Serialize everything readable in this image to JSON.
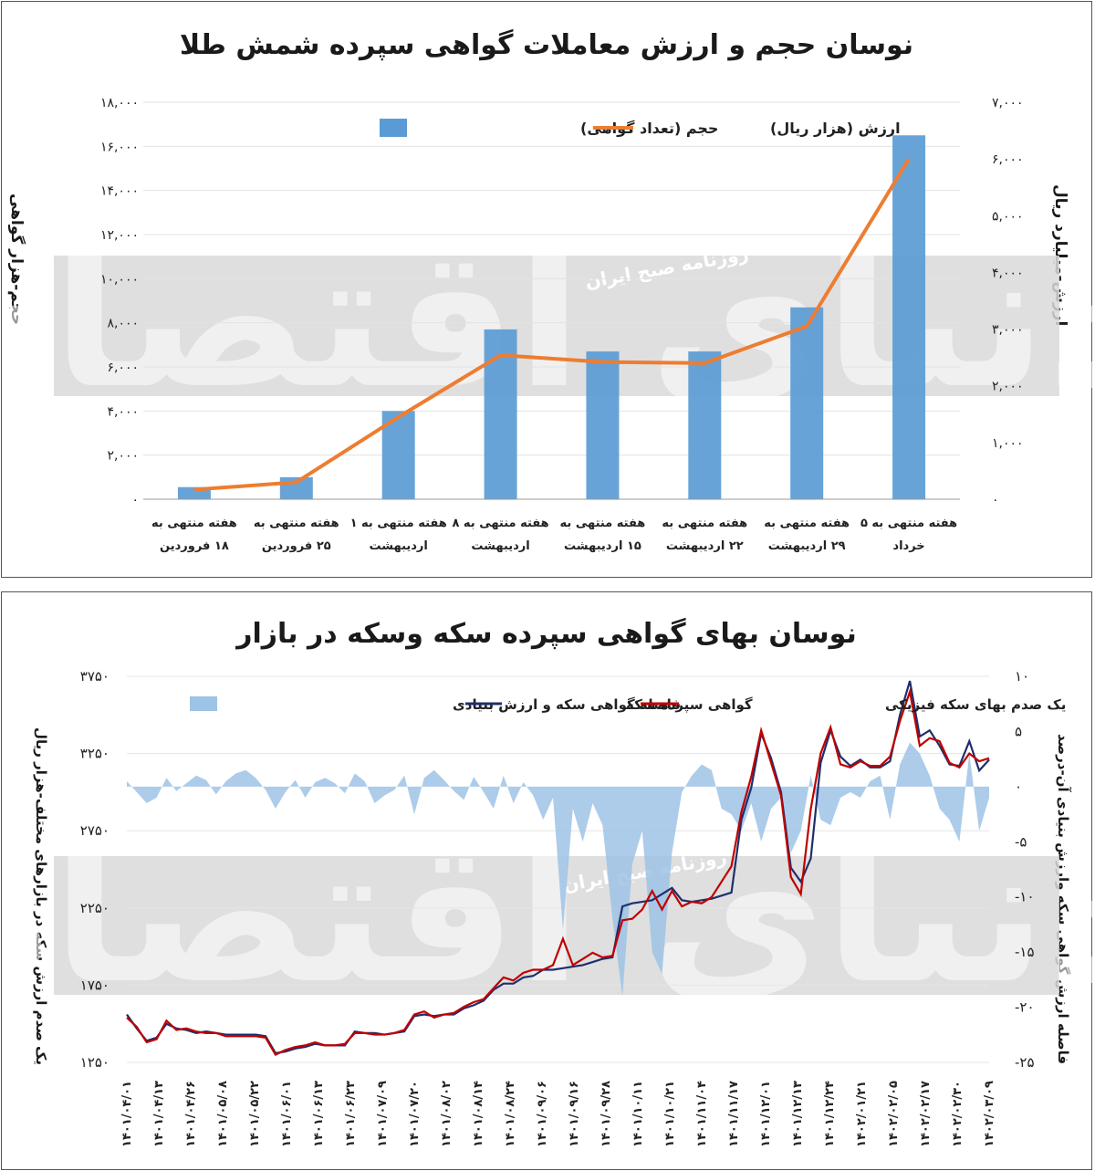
{
  "watermark": {
    "big": "دنیای اقتصاد",
    "small": "روزنامه صبح ایران"
  },
  "colors": {
    "bar": "#5b9bd5",
    "value_line": "#ed7d31",
    "area": "#9dc3e6",
    "cert_line": "#1f2f6b",
    "coin_line": "#c00000"
  },
  "chart_data": [
    {
      "type": "bar",
      "title": "نوسان حجم و ارزش معاملات گواهی سپرده شمش طلا",
      "ylabel": "حجم-هزار گواهی",
      "y2label": "ارزش-میلیارد ریال",
      "ylim": [
        0,
        18000
      ],
      "y2lim": [
        0,
        7000
      ],
      "yticks": [
        "۱۸,۰۰۰",
        "۱۶,۰۰۰",
        "۱۴,۰۰۰",
        "۱۲,۰۰۰",
        "۱۰,۰۰۰",
        "۸,۰۰۰",
        "۶,۰۰۰",
        "۴,۰۰۰",
        "۲,۰۰۰",
        "۰"
      ],
      "y2ticks": [
        "۷,۰۰۰",
        "۶,۰۰۰",
        "۵,۰۰۰",
        "۴,۰۰۰",
        "۳,۰۰۰",
        "۲,۰۰۰",
        "۱,۰۰۰",
        "۰"
      ],
      "categories": [
        [
          "هفته منتهی به",
          "۱۸ فروردین"
        ],
        [
          "هفته منتهی به",
          "۲۵ فروردین"
        ],
        [
          "هفته منتهی به ۱",
          "اردیبهشت"
        ],
        [
          "هفته منتهی به ۸",
          "اردیبهشت"
        ],
        [
          "هفته منتهی به",
          "۱۵ اردیبهشت"
        ],
        [
          "هفته منتهی به",
          "۲۲ اردیبهشت"
        ],
        [
          "هفته منتهی به",
          "۲۹ اردیبهشت"
        ],
        [
          "هفته منتهی به ۵",
          "خرداد"
        ]
      ],
      "series": [
        {
          "name": "حجم (تعداد گواهی)",
          "axis": "left",
          "kind": "bar",
          "values": [
            550,
            1000,
            4000,
            7700,
            6700,
            6700,
            8700,
            16500
          ]
        },
        {
          "name": "ارزش (هزار ریال)",
          "axis": "right",
          "kind": "line",
          "values": [
            170,
            300,
            1450,
            2540,
            2420,
            2400,
            3050,
            6000
          ]
        }
      ],
      "legend": "top-center"
    },
    {
      "type": "line",
      "title": "نوسان بهای گواهی سپرده سکه وسکه در بازار",
      "ylabel": "یک صدم ارزش سکه در بازارهای مختلف-هزار ریال",
      "y2label": "فاصله ارزش گواهی سکه وارزش بنیادی آن-درصد",
      "ylim": [
        1250,
        3750
      ],
      "y2lim": [
        -25,
        10
      ],
      "yticks": [
        "۳۷۵۰",
        "۳۲۵۰",
        "۲۷۵۰",
        "۲۲۵۰",
        "۱۷۵۰",
        "۱۲۵۰"
      ],
      "y2ticks": [
        "۱۰",
        "۵",
        "۰",
        "-۵",
        "-۱۰",
        "-۱۵",
        "-۲۰",
        "-۲۵"
      ],
      "x_labels": [
        "۱۴۰۱/۰۴/۰۱",
        "۱۴۰۱/۰۴/۱۳",
        "۱۴۰۱/۰۴/۲۶",
        "۱۴۰۱/۰۵/۰۸",
        "۱۴۰۱/۰۵/۲۲",
        "۱۴۰۱/۰۶/۰۱",
        "۱۴۰۱/۰۶/۱۳",
        "۱۴۰۱/۰۶/۲۳",
        "۱۴۰۱/۰۷/۰۹",
        "۱۴۰۱/۰۷/۲۰",
        "۱۴۰۱/۰۸/۰۲",
        "۱۴۰۱/۰۸/۱۴",
        "۱۴۰۱/۰۸/۲۴",
        "۱۴۰۱/۰۹/۰۶",
        "۱۴۰۱/۰۹/۱۶",
        "۱۴۰۱/۰۹/۲۸",
        "۱۴۰۱/۱۰/۱۱",
        "۱۴۰۱/۱۰/۲۱",
        "۱۴۰۱/۱۱/۰۴",
        "۱۴۰۱/۱۱/۱۷",
        "۱۴۰۱/۱۲/۰۱",
        "۱۴۰۱/۱۲/۱۳",
        "۱۴۰۱/۱۲/۲۴",
        "۱۴۰۲/۰۱/۲۱",
        "۱۴۰۲/۰۲/۰۵",
        "۱۴۰۲/۰۲/۱۷",
        "۱۴۰۲/۰۲/۳۰",
        "۱۴۰۲/۰۳/۰۹"
      ],
      "series": [
        {
          "name": "یک صدم بهای سکه فیزیکی",
          "axis": "left",
          "kind": "line",
          "values": [
            1540,
            1480,
            1380,
            1400,
            1520,
            1460,
            1470,
            1450,
            1440,
            1440,
            1420,
            1420,
            1420,
            1420,
            1410,
            1300,
            1330,
            1350,
            1360,
            1380,
            1360,
            1360,
            1370,
            1440,
            1440,
            1430,
            1430,
            1440,
            1460,
            1560,
            1580,
            1540,
            1560,
            1570,
            1610,
            1640,
            1660,
            1730,
            1800,
            1780,
            1830,
            1850,
            1850,
            1880,
            2050,
            1880,
            1920,
            1960,
            1930,
            1940,
            2170,
            2180,
            2240,
            2360,
            2240,
            2360,
            2260,
            2290,
            2280,
            2320,
            2420,
            2520,
            2870,
            3100,
            3400,
            3190,
            2980,
            2450,
            2340,
            2890,
            3250,
            3420,
            3180,
            3160,
            3200,
            3170,
            3170,
            3230,
            3460,
            3650,
            3300,
            3350,
            3330,
            3190,
            3160,
            3250,
            3200,
            3220
          ]
        },
        {
          "name": "گواهی سپرده سکه",
          "axis": "left",
          "kind": "line",
          "values": [
            1560,
            1470,
            1390,
            1410,
            1500,
            1470,
            1460,
            1440,
            1450,
            1440,
            1430,
            1430,
            1430,
            1430,
            1420,
            1310,
            1320,
            1340,
            1350,
            1370,
            1360,
            1360,
            1360,
            1450,
            1440,
            1440,
            1430,
            1440,
            1450,
            1550,
            1560,
            1550,
            1560,
            1560,
            1600,
            1620,
            1650,
            1720,
            1760,
            1760,
            1800,
            1810,
            1850,
            1850,
            1860,
            1870,
            1880,
            1900,
            1920,
            1930,
            2260,
            2280,
            2290,
            2300,
            2340,
            2380,
            2300,
            2290,
            2300,
            2310,
            2330,
            2350,
            2820,
            3030,
            3380,
            3220,
            3000,
            2510,
            2420,
            2570,
            3190,
            3400,
            3230,
            3170,
            3210,
            3160,
            3160,
            3200,
            3500,
            3720,
            3360,
            3400,
            3300,
            3180,
            3170,
            3330,
            3140,
            3210
          ]
        },
        {
          "name": "فاصله گواهی سکه و ارزش بنیادی",
          "axis": "right",
          "kind": "area",
          "values": [
            0.5,
            -0.5,
            -1.5,
            -1,
            0.8,
            -0.4,
            0.3,
            1,
            0.6,
            -0.7,
            0.5,
            1.2,
            1.5,
            0.8,
            -0.3,
            -2,
            -0.5,
            0.6,
            -1,
            0.4,
            0.8,
            0.3,
            -0.6,
            1.2,
            0.5,
            -1.5,
            -0.8,
            -0.3,
            1,
            -2.5,
            0.8,
            1.5,
            0.6,
            -0.4,
            -1.2,
            0.9,
            -0.5,
            -2,
            1,
            -1.5,
            0.4,
            -0.8,
            -3,
            -1,
            -13,
            -2,
            -5,
            -1.5,
            -3.5,
            -12,
            -19,
            -7,
            -4,
            -15,
            -17,
            -6,
            -0.5,
            1,
            2,
            1.5,
            -2,
            -2.5,
            -4,
            -1.5,
            -5,
            -2,
            -1,
            -6,
            -4,
            1,
            -3,
            -3.5,
            -1,
            -0.5,
            -1,
            0.5,
            1,
            -3,
            2,
            4,
            3,
            1,
            -2,
            -3,
            -5,
            3,
            -4,
            -1
          ]
        }
      ],
      "legend": "top-center"
    }
  ]
}
